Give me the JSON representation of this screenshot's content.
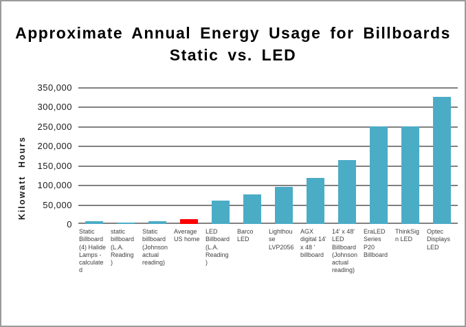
{
  "window": {
    "background_color": "#ffffff",
    "border_color": "#9a9a9a"
  },
  "chart_data": {
    "type": "bar",
    "title_line1": "Approximate Annual Energy Usage for Billboards",
    "title_line2": "Static vs. LED",
    "ylabel": "Kilowatt Hours",
    "xlabel": "",
    "ylim": [
      0,
      350000
    ],
    "ytick_values": [
      0,
      50000,
      100000,
      150000,
      200000,
      250000,
      300000,
      350000
    ],
    "ytick_labels": [
      "0",
      "50,000",
      "100,000",
      "150,000",
      "200,000",
      "250,000",
      "300,000",
      "350,000"
    ],
    "grid": true,
    "legend": false,
    "categories": [
      "Static Billboard (4) Halide Lamps - calculated",
      "static billboard (L.A. Reading )",
      "Static billboard (Johnson actual reading)",
      "Average US home",
      "LED Billboard (L.A. Reading )",
      "Barco LED",
      "Lighthouse LVP2056",
      "AGX digital 14' x 48 ' billboard",
      "14' x 48' LED Billboard (Johnson actual reading)",
      "EraLED Series P20 Billboard",
      "ThinkSign LED",
      "Optec Displays LED"
    ],
    "values": [
      7000,
      4000,
      7000,
      11500,
      60000,
      75000,
      95000,
      117000,
      164000,
      250000,
      250000,
      325000
    ],
    "highlight_index": 3,
    "colors": {
      "bar_default": "#4BACC6",
      "bar_highlight": "#FF0000",
      "gridline": "#808080",
      "axis_text": "#1a1a1a",
      "category_text": "#3f3f3f",
      "title_text": "#000000"
    }
  }
}
